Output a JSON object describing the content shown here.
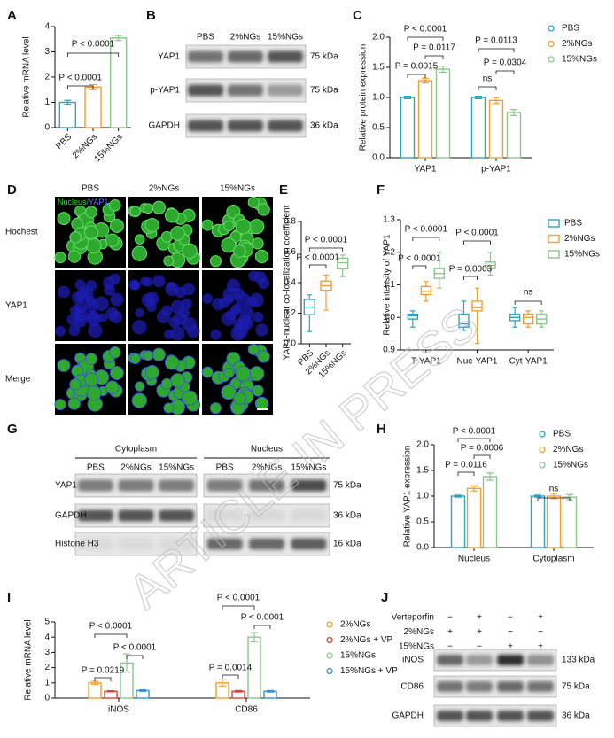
{
  "watermark": "ARTICLE IN PRESS",
  "chart_data": [
    {
      "panel": "A",
      "type": "bar",
      "y_label": "Relative mRNA level",
      "categories": [
        "PBS",
        "2%NGs",
        "15%NGs"
      ],
      "values": [
        1.0,
        1.6,
        3.55
      ],
      "errors": [
        0.08,
        0.1,
        0.1
      ],
      "colors": [
        "#2aa6c4",
        "#f0a030",
        "#8cc68c"
      ],
      "ylim": [
        0,
        4
      ],
      "yticks": [
        0,
        1,
        2,
        3,
        4
      ],
      "annotations": [
        "P < 0.0001",
        "P < 0.0001"
      ]
    },
    {
      "panel": "C",
      "type": "bar",
      "y_label": "Relative protein expression",
      "legend": "right",
      "categories": [
        "YAP1",
        "p-YAP1"
      ],
      "series": [
        {
          "name": "PBS",
          "color": "#2aa6c4",
          "values": [
            1.0,
            1.0
          ],
          "errors": [
            0.02,
            0.02
          ]
        },
        {
          "name": "2%NGs",
          "color": "#f0a030",
          "values": [
            1.28,
            0.95
          ],
          "errors": [
            0.04,
            0.05
          ]
        },
        {
          "name": "15%NGs",
          "color": "#8cc68c",
          "values": [
            1.47,
            0.75
          ],
          "errors": [
            0.05,
            0.05
          ]
        }
      ],
      "ylim": [
        0,
        2
      ],
      "yticks": [
        {
          "value": 0,
          "label": "0.0"
        },
        0.5,
        {
          "value": 1,
          "label": "1.0"
        },
        1.5,
        {
          "value": 2,
          "label": "2.0"
        }
      ],
      "annotations": [
        "P < 0.0001",
        "P = 0.0117",
        "P = 0.0015",
        "P = 0.0113",
        "P = 0.0304",
        "ns"
      ]
    },
    {
      "panel": "E",
      "type": "box",
      "y_label": "YAP1-nuclear co-localization coefficient",
      "categories": [
        "PBS",
        "2%NGs",
        "15%NGs"
      ],
      "values": [
        [
          0.08,
          0.19,
          0.24,
          0.29,
          0.32
        ],
        [
          0.22,
          0.35,
          0.38,
          0.41,
          0.45
        ],
        [
          0.44,
          0.49,
          0.53,
          0.56,
          0.58
        ]
      ],
      "colors": [
        "#2aa6c4",
        "#f0a030",
        "#8cc68c"
      ],
      "ylim": [
        0,
        0.8
      ],
      "yticks": [
        {
          "value": 0,
          "label": "0.0"
        },
        0.2,
        0.4,
        0.6,
        0.8
      ],
      "annotations": [
        "P < 0.0001",
        "P < 0.0001"
      ]
    },
    {
      "panel": "F",
      "type": "box",
      "y_label": "Relative intensity of YAP1",
      "legend": "right",
      "categories": [
        "T-YAP1",
        "Nuc-YAP1",
        "Cyt-YAP1"
      ],
      "series": [
        {
          "name": "PBS",
          "color": "#2aa6c4",
          "values": [
            [
              0.97,
              0.995,
              1.005,
              1.01,
              1.02
            ],
            [
              0.96,
              0.97,
              0.98,
              1.01,
              1.05
            ],
            [
              0.97,
              0.99,
              1.0,
              1.01,
              1.03
            ]
          ]
        },
        {
          "name": "2%NGs",
          "color": "#f0a030",
          "values": [
            [
              1.05,
              1.07,
              1.08,
              1.095,
              1.11
            ],
            [
              0.92,
              1.02,
              1.03,
              1.05,
              1.09
            ],
            [
              0.97,
              0.98,
              1.0,
              1.01,
              1.02
            ]
          ]
        },
        {
          "name": "15%NGs",
          "color": "#8cc68c",
          "values": [
            [
              1.09,
              1.12,
              1.135,
              1.15,
              1.2
            ],
            [
              1.13,
              1.15,
              1.16,
              1.17,
              1.2
            ],
            [
              0.97,
              0.98,
              0.995,
              1.01,
              1.02
            ]
          ]
        }
      ],
      "ylim": [
        0.9,
        1.3
      ],
      "yticks": [
        0.9,
        {
          "value": 1,
          "label": "1.0"
        },
        1.1,
        1.2,
        1.3
      ],
      "annotations": [
        "P < 0.0001",
        "P < 0.0001",
        "P < 0.0001",
        "P = 0.0003",
        "ns"
      ]
    },
    {
      "panel": "H",
      "type": "bar",
      "y_label": "Relative YAP1 expression",
      "legend": "right",
      "categories": [
        "Nucleus",
        "Cytoplasm"
      ],
      "series": [
        {
          "name": "PBS",
          "color": "#2aa6c4",
          "values": [
            1.0,
            1.0
          ],
          "errors": [
            0.02,
            0.02
          ]
        },
        {
          "name": "2%NGs",
          "color": "#f0a030",
          "values": [
            1.15,
            1.0
          ],
          "errors": [
            0.05,
            0.05
          ]
        },
        {
          "name": "15%NGs",
          "color": "#8cc68c",
          "values": [
            1.38,
            0.98
          ],
          "errors": [
            0.07,
            0.05
          ]
        }
      ],
      "ylim": [
        0,
        2
      ],
      "yticks": [
        {
          "value": 0,
          "label": "0.0"
        },
        0.5,
        {
          "value": 1,
          "label": "1.0"
        },
        1.5,
        {
          "value": 2,
          "label": "2.0"
        }
      ],
      "annotations": [
        "P < 0.0001",
        "P = 0.0006",
        "P = 0.0116",
        "ns"
      ]
    },
    {
      "panel": "I",
      "type": "bar",
      "y_label": "Relative mRNA level",
      "legend": "right",
      "categories": [
        "iNOS",
        "CD86"
      ],
      "series": [
        {
          "name": "2%NGs",
          "color": "#f0a030",
          "values": [
            1.0,
            1.0
          ],
          "errors": [
            0.1,
            0.2
          ]
        },
        {
          "name": "2%NGs + VP",
          "color": "#e04040",
          "values": [
            0.45,
            0.45
          ],
          "errors": [
            0.04,
            0.05
          ]
        },
        {
          "name": "15%NGs",
          "color": "#8cc68c",
          "values": [
            2.3,
            4.0
          ],
          "errors": [
            0.6,
            0.3
          ]
        },
        {
          "name": "15%NGs + VP",
          "color": "#3b8fd8",
          "values": [
            0.5,
            0.45
          ],
          "errors": [
            0.05,
            0.05
          ]
        }
      ],
      "ylim": [
        0,
        5
      ],
      "yticks": [
        0,
        1,
        2,
        3,
        4,
        5
      ],
      "annotations": [
        "P < 0.0001",
        "P < 0.0001",
        "P = 0.0219",
        "P < 0.0001",
        "P < 0.0001",
        "P = 0.0014"
      ]
    }
  ],
  "panel_b": {
    "panel": "B",
    "columns": [
      "PBS",
      "2%NGs",
      "15%NGs"
    ],
    "rows": [
      {
        "label": "YAP1",
        "size": "75 kDa"
      },
      {
        "label": "p-YAP1",
        "size": "75 kDa"
      },
      {
        "label": "GAPDH",
        "size": "36 kDa"
      }
    ]
  },
  "panel_d": {
    "panel": "D",
    "stain_labels": [
      "Nucleus",
      "/YAP1"
    ],
    "columns": [
      "PBS",
      "2%NGs",
      "15%NGs"
    ],
    "rows": [
      "Hochest",
      "YAP1",
      "Merge"
    ]
  },
  "panel_g": {
    "panel": "G",
    "groups": [
      {
        "name": "Cytoplasm",
        "columns": [
          "PBS",
          "2%NGs",
          "15%NGs"
        ]
      },
      {
        "name": "Nucleus",
        "columns": [
          "PBS",
          "2%NGs",
          "15%NGs"
        ]
      }
    ],
    "rows": [
      {
        "label": "YAP1",
        "size": "75 kDa"
      },
      {
        "label": "GAPDH",
        "size": "36 kDa"
      },
      {
        "label": "Histone H3",
        "size": "16 kDa"
      }
    ]
  },
  "panel_j": {
    "panel": "J",
    "conditions": [
      {
        "label": "Verteporfin",
        "marks": [
          "−",
          "+",
          "−",
          "+"
        ]
      },
      {
        "label": "2%NGs",
        "marks": [
          "+",
          "+",
          "−",
          "−"
        ]
      },
      {
        "label": "15%NGs",
        "marks": [
          "−",
          "−",
          "+",
          "+"
        ]
      }
    ],
    "rows": [
      {
        "label": "iNOS",
        "size": "133 kDa"
      },
      {
        "label": "CD86",
        "size": "75 kDa"
      },
      {
        "label": "GAPDH",
        "size": "36 kDa"
      }
    ]
  }
}
